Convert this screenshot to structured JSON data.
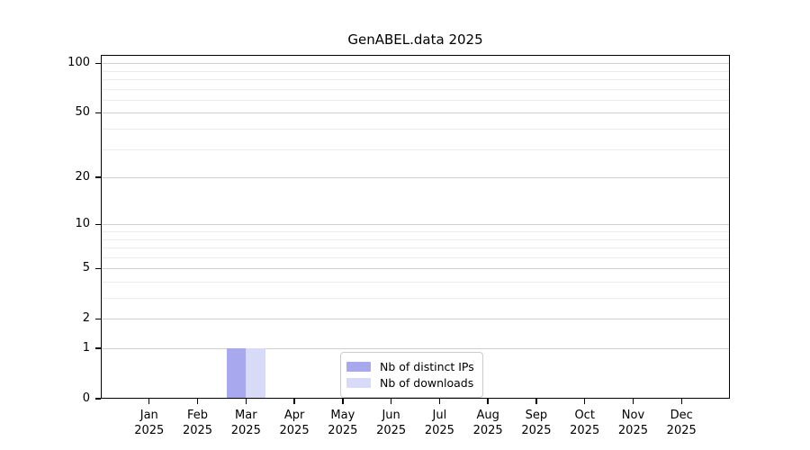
{
  "chart_data": {
    "type": "bar",
    "title": "GenABEL.data 2025",
    "x_year": "2025",
    "categories": [
      "Jan",
      "Feb",
      "Mar",
      "Apr",
      "May",
      "Jun",
      "Jul",
      "Aug",
      "Sep",
      "Oct",
      "Nov",
      "Dec"
    ],
    "series": [
      {
        "name": "Nb of distinct IPs",
        "color": "#a8a8ef",
        "values": [
          0,
          0,
          1,
          0,
          0,
          0,
          0,
          0,
          0,
          0,
          0,
          0
        ]
      },
      {
        "name": "Nb of downloads",
        "color": "#d9d9f8",
        "values": [
          0,
          0,
          1,
          0,
          0,
          0,
          0,
          0,
          0,
          0,
          0,
          0
        ]
      }
    ],
    "xlabel": "",
    "ylabel": "",
    "y_ticks": [
      0,
      1,
      2,
      5,
      10,
      20,
      50,
      100
    ],
    "y_minor_gridlines": [
      3,
      4,
      6,
      7,
      8,
      9,
      30,
      40,
      60,
      70,
      80,
      90
    ],
    "y_scale": "log10(1+y)",
    "ylim": [
      0,
      112
    ],
    "grid": "horizontal",
    "legend_position": "lower center",
    "colors": {
      "major_gridline": "#cfcfcf",
      "minor_gridline": "#ececec",
      "axis": "#000000",
      "text": "#000000",
      "background": "#ffffff"
    }
  }
}
